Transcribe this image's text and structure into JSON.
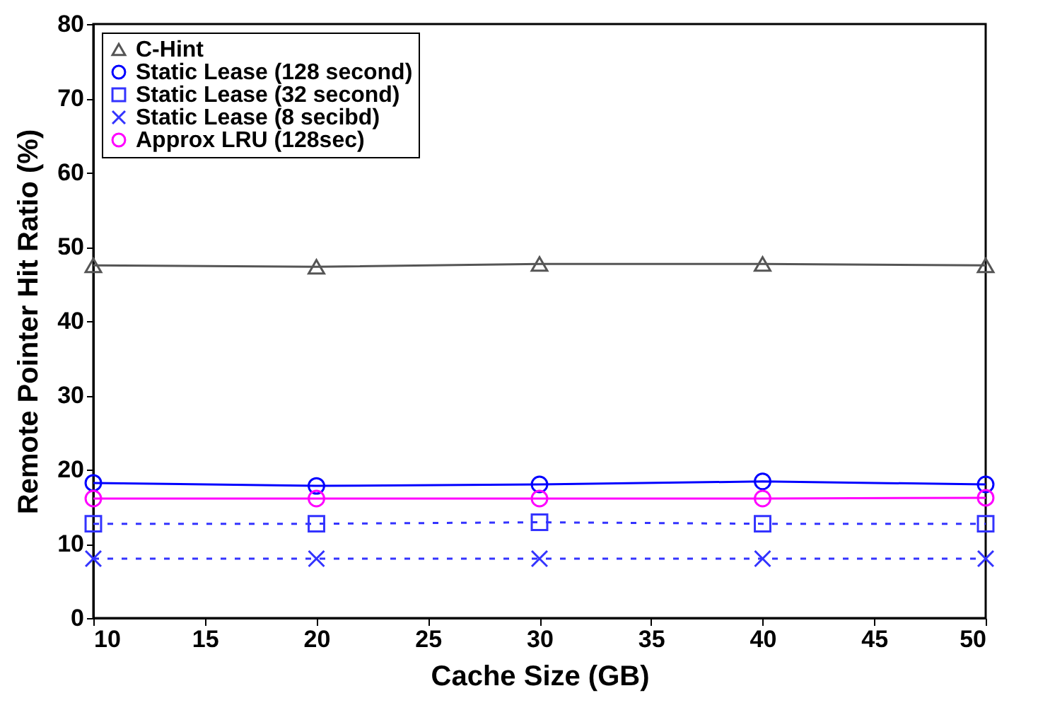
{
  "chart_data": {
    "type": "line",
    "xlabel": "Cache Size (GB)",
    "ylabel": "Remote Pointer Hit Ratio (%)",
    "x": [
      10,
      20,
      30,
      40,
      50
    ],
    "xlim": [
      10,
      50
    ],
    "xticks": [
      10,
      15,
      20,
      25,
      30,
      35,
      40,
      45,
      50
    ],
    "ylim": [
      0,
      80
    ],
    "yticks": [
      0,
      10,
      20,
      30,
      40,
      50,
      60,
      70,
      80
    ],
    "grid": false,
    "legend": "top left",
    "series": [
      {
        "name": "C-Hint",
        "color": "#555555",
        "marker": "triangle",
        "line_style": "solid",
        "values": [
          47.5,
          47.3,
          47.7,
          47.7,
          47.5
        ]
      },
      {
        "name": "Static Lease (128 second)",
        "color": "#0000ff",
        "marker": "circle",
        "line_style": "solid",
        "values": [
          18.2,
          17.8,
          18.0,
          18.4,
          18.0
        ]
      },
      {
        "name": "Static Lease (32 second)",
        "color": "#3333ff",
        "marker": "square",
        "line_style": "dashed",
        "values": [
          12.7,
          12.7,
          12.9,
          12.7,
          12.7
        ]
      },
      {
        "name": "Static Lease (8 secibd)",
        "color": "#3333ff",
        "marker": "cross",
        "line_style": "dashed",
        "values": [
          8.0,
          8.0,
          8.0,
          8.0,
          8.0
        ]
      },
      {
        "name": "Approx LRU (128sec)",
        "color": "#ff00ff",
        "marker": "circle",
        "line_style": "solid",
        "values": [
          16.1,
          16.1,
          16.1,
          16.1,
          16.2
        ]
      }
    ]
  }
}
